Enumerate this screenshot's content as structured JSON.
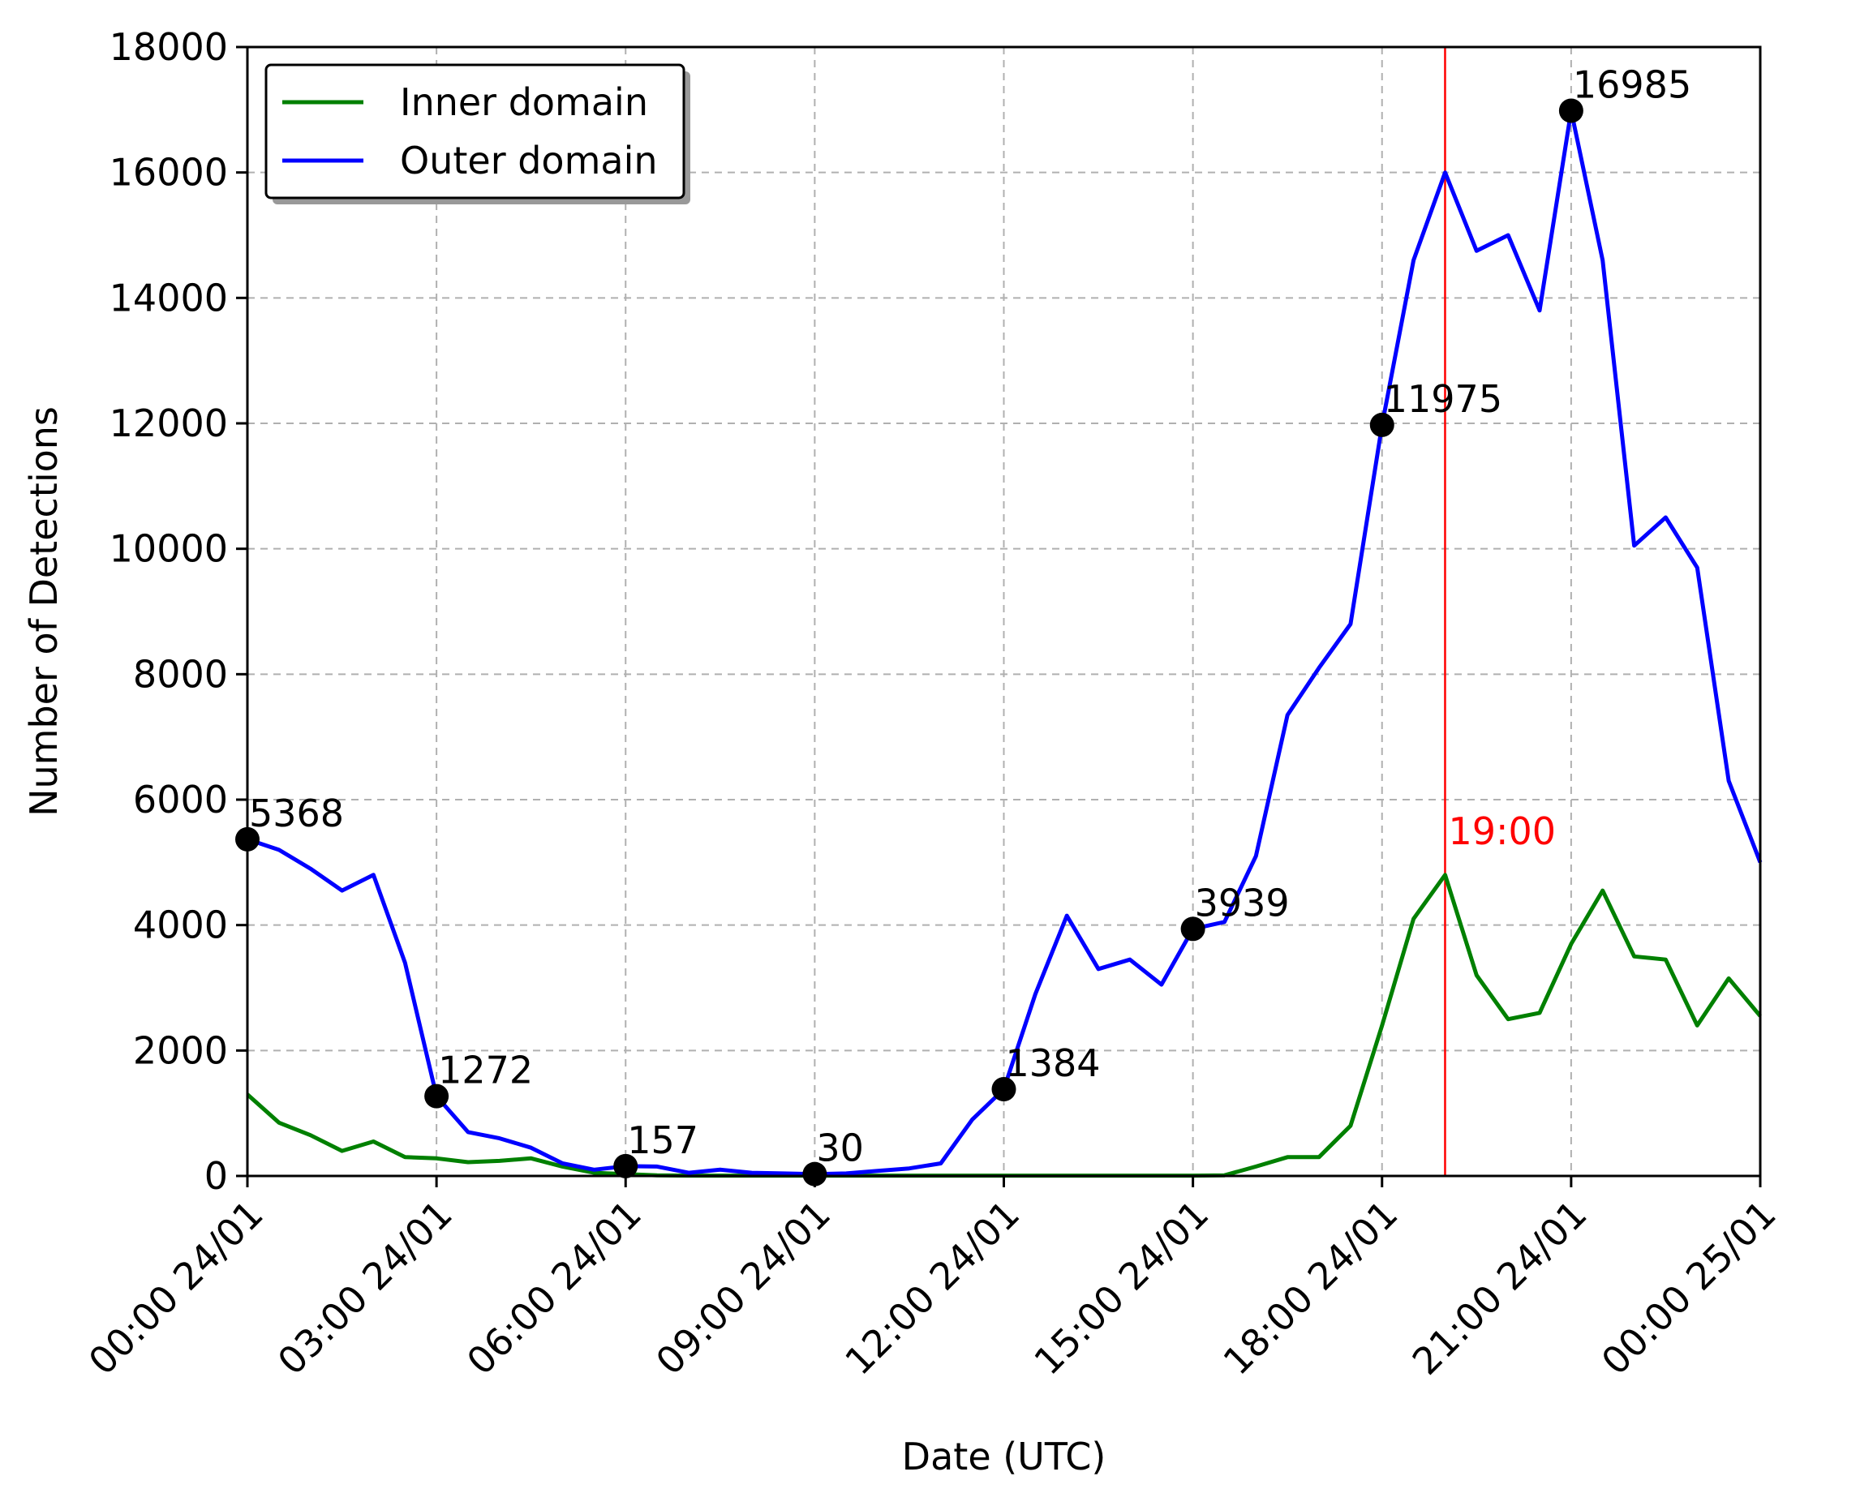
{
  "chart_data": {
    "type": "line",
    "title": "",
    "xlabel": "Date (UTC)",
    "ylabel": "Number of Detections",
    "ylim": [
      0,
      18000
    ],
    "xlim_hours": [
      0,
      24
    ],
    "grid": true,
    "legend_position": "top-left",
    "yticks": [
      0,
      2000,
      4000,
      6000,
      8000,
      10000,
      12000,
      14000,
      16000,
      18000
    ],
    "xtick_labels": [
      "00:00 24/01",
      "03:00 24/01",
      "06:00 24/01",
      "09:00 24/01",
      "12:00 24/01",
      "15:00 24/01",
      "18:00 24/01",
      "21:00 24/01",
      "00:00 25/01"
    ],
    "series": [
      {
        "name": "Inner domain",
        "color": "#008000",
        "x": [
          0,
          0.5,
          1,
          1.5,
          2,
          2.5,
          3,
          3.5,
          4,
          4.5,
          5,
          5.5,
          6,
          6.5,
          7,
          7.5,
          8,
          8.5,
          9,
          9.5,
          10,
          10.5,
          11,
          11.5,
          12,
          12.5,
          13,
          13.5,
          14,
          14.5,
          15,
          15.5,
          16,
          16.5,
          17,
          17.5,
          18,
          18.5,
          19,
          19.5,
          20,
          20.5,
          21,
          21.5,
          22,
          22.5,
          23,
          23.5,
          24
        ],
        "values": [
          1300,
          850,
          650,
          400,
          550,
          300,
          280,
          220,
          240,
          280,
          150,
          50,
          30,
          10,
          5,
          5,
          5,
          5,
          5,
          5,
          5,
          5,
          5,
          5,
          5,
          5,
          5,
          5,
          5,
          5,
          5,
          10,
          150,
          300,
          300,
          800,
          2400,
          4100,
          4800,
          3200,
          2500,
          2600,
          3700,
          4550,
          3500,
          3450,
          2400,
          3150,
          2550
        ]
      },
      {
        "name": "Outer domain",
        "color": "#0000ff",
        "x": [
          0,
          0.5,
          1,
          1.5,
          2,
          2.5,
          3,
          3.5,
          4,
          4.5,
          5,
          5.5,
          6,
          6.5,
          7,
          7.5,
          8,
          8.5,
          9,
          9.5,
          10,
          10.5,
          11,
          11.5,
          12,
          12.5,
          13,
          13.5,
          14,
          14.5,
          15,
          15.5,
          16,
          16.5,
          17,
          17.5,
          18,
          18.5,
          19,
          19.5,
          20,
          20.5,
          21,
          21.5,
          22,
          22.5,
          23,
          23.5,
          24
        ],
        "values": [
          5368,
          5200,
          4900,
          4550,
          4800,
          3400,
          1272,
          700,
          600,
          450,
          200,
          100,
          157,
          150,
          50,
          100,
          50,
          40,
          30,
          40,
          80,
          120,
          200,
          900,
          1384,
          2900,
          4150,
          3300,
          3450,
          3050,
          3939,
          4050,
          5100,
          7350,
          8100,
          8800,
          11975,
          14600,
          16000,
          14750,
          15000,
          13800,
          16985,
          14600,
          10050,
          10500,
          9700,
          6300,
          5000
        ]
      }
    ],
    "annotations": [
      {
        "x": 0,
        "y": 5368,
        "label": "5368"
      },
      {
        "x": 3,
        "y": 1272,
        "label": "1272"
      },
      {
        "x": 6,
        "y": 157,
        "label": "157"
      },
      {
        "x": 9,
        "y": 30,
        "label": "30"
      },
      {
        "x": 12,
        "y": 1384,
        "label": "1384"
      },
      {
        "x": 15,
        "y": 3939,
        "label": "3939"
      },
      {
        "x": 18,
        "y": 11975,
        "label": "11975"
      },
      {
        "x": 21,
        "y": 16985,
        "label": "16985"
      }
    ],
    "vline": {
      "x": 19,
      "label": "19:00",
      "color": "#ff0000"
    }
  }
}
